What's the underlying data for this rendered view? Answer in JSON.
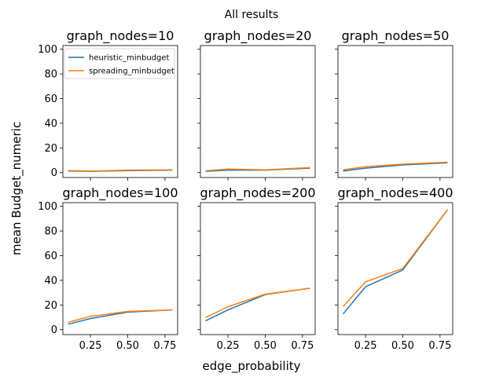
{
  "figure": {
    "suptitle": "All results",
    "xlabel": "edge_probability",
    "ylabel": "mean Budget_numeric",
    "legend": [
      "heuristic_minbudget",
      "spreading_minbudget"
    ],
    "colors": {
      "heuristic_minbudget": "#1f77b4",
      "spreading_minbudget": "#ff7f0e"
    },
    "x_ticks": [
      "0.25",
      "0.50",
      "0.75"
    ],
    "y_ticks": [
      "0",
      "20",
      "40",
      "60",
      "80",
      "100"
    ]
  },
  "chart_data": [
    {
      "type": "line",
      "title": "graph_nodes=10",
      "x": [
        0.1,
        0.25,
        0.5,
        0.8
      ],
      "xlim": [
        0.065,
        0.835
      ],
      "ylim": [
        -4,
        103
      ],
      "series": [
        {
          "name": "heuristic_minbudget",
          "values": [
            1.2,
            1.0,
            1.6,
            2.0
          ]
        },
        {
          "name": "spreading_minbudget",
          "values": [
            1.6,
            1.2,
            2.0,
            2.2
          ]
        }
      ]
    },
    {
      "type": "line",
      "title": "graph_nodes=20",
      "x": [
        0.1,
        0.25,
        0.5,
        0.8
      ],
      "xlim": [
        0.065,
        0.835
      ],
      "ylim": [
        -4,
        103
      ],
      "series": [
        {
          "name": "heuristic_minbudget",
          "values": [
            1.0,
            2.0,
            2.0,
            3.6
          ]
        },
        {
          "name": "spreading_minbudget",
          "values": [
            1.4,
            2.8,
            2.2,
            4.0
          ]
        }
      ]
    },
    {
      "type": "line",
      "title": "graph_nodes=50",
      "x": [
        0.1,
        0.25,
        0.5,
        0.8
      ],
      "xlim": [
        0.065,
        0.835
      ],
      "ylim": [
        -4,
        103
      ],
      "series": [
        {
          "name": "heuristic_minbudget",
          "values": [
            1.2,
            3.6,
            6.2,
            8.0
          ]
        },
        {
          "name": "spreading_minbudget",
          "values": [
            2.2,
            4.8,
            6.8,
            8.4
          ]
        }
      ]
    },
    {
      "type": "line",
      "title": "graph_nodes=100",
      "x": [
        0.1,
        0.25,
        0.5,
        0.8
      ],
      "xlim": [
        0.065,
        0.835
      ],
      "ylim": [
        -4,
        103
      ],
      "series": [
        {
          "name": "heuristic_minbudget",
          "values": [
            4.4,
            9.0,
            14.2,
            16.0
          ]
        },
        {
          "name": "spreading_minbudget",
          "values": [
            6.0,
            10.8,
            14.8,
            16.0
          ]
        }
      ]
    },
    {
      "type": "line",
      "title": "graph_nodes=200",
      "x": [
        0.1,
        0.25,
        0.5,
        0.8
      ],
      "xlim": [
        0.065,
        0.835
      ],
      "ylim": [
        -4,
        103
      ],
      "series": [
        {
          "name": "heuristic_minbudget",
          "values": [
            7.2,
            16.0,
            28.5,
            33.6
          ]
        },
        {
          "name": "spreading_minbudget",
          "values": [
            9.8,
            18.6,
            28.8,
            33.6
          ]
        }
      ]
    },
    {
      "type": "line",
      "title": "graph_nodes=400",
      "x": [
        0.1,
        0.25,
        0.5,
        0.8
      ],
      "xlim": [
        0.065,
        0.835
      ],
      "ylim": [
        -4,
        103
      ],
      "series": [
        {
          "name": "heuristic_minbudget",
          "values": [
            12.8,
            34.8,
            48.4,
            97.2
          ]
        },
        {
          "name": "spreading_minbudget",
          "values": [
            18.8,
            38.8,
            49.6,
            97.2
          ]
        }
      ]
    }
  ]
}
